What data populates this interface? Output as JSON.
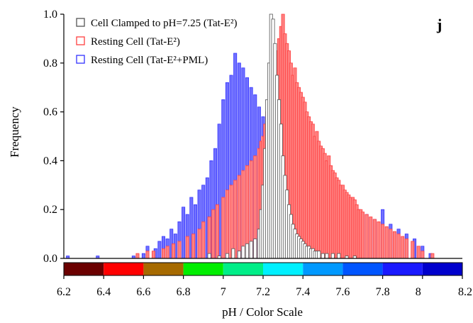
{
  "chart_data": {
    "type": "bar",
    "panel_label": "j",
    "ylabel": "Frequency",
    "xlabel": "pH / Color Scale",
    "ylim": [
      0,
      1.0
    ],
    "xlim": [
      6.2,
      8.2
    ],
    "y_ticks": [
      "0.0",
      "0.2",
      "0.4",
      "0.6",
      "0.8",
      "1.0"
    ],
    "x_ticks": [
      {
        "value": 6.2,
        "label": "6.2"
      },
      {
        "value": 6.4,
        "label": "6.4"
      },
      {
        "value": 6.6,
        "label": "6.6"
      },
      {
        "value": 6.8,
        "label": "6.8"
      },
      {
        "value": 7.0,
        "label": "7"
      },
      {
        "value": 7.2,
        "label": "7.2"
      },
      {
        "value": 7.4,
        "label": "7.4"
      },
      {
        "value": 7.6,
        "label": "7.6"
      },
      {
        "value": 7.8,
        "label": "7.8"
      },
      {
        "value": 8.0,
        "label": "8"
      },
      {
        "value": 8.2,
        "label": "8.2"
      }
    ],
    "color_scale": [
      {
        "from": 6.2,
        "to": 6.4,
        "color": "#6b0000"
      },
      {
        "from": 6.4,
        "to": 6.6,
        "color": "#ff0000"
      },
      {
        "from": 6.6,
        "to": 6.8,
        "color": "#a66a00"
      },
      {
        "from": 6.8,
        "to": 7.0,
        "color": "#00ee00"
      },
      {
        "from": 7.0,
        "to": 7.2,
        "color": "#00ee88"
      },
      {
        "from": 7.2,
        "to": 7.4,
        "color": "#00f0ff"
      },
      {
        "from": 7.4,
        "to": 7.6,
        "color": "#0099ff"
      },
      {
        "from": 7.6,
        "to": 7.8,
        "color": "#0055ff"
      },
      {
        "from": 7.8,
        "to": 8.0,
        "color": "#1a1aff"
      },
      {
        "from": 8.0,
        "to": 8.2,
        "color": "#0000cc"
      }
    ],
    "series": [
      {
        "name": "Cell Clamped to pH=7.25 (Tat-E²)",
        "color": "#555555",
        "fill": "#ffffff",
        "x": [
          6.93,
          6.98,
          7.02,
          7.05,
          7.08,
          7.1,
          7.12,
          7.14,
          7.16,
          7.18,
          7.19,
          7.2,
          7.21,
          7.22,
          7.23,
          7.24,
          7.25,
          7.26,
          7.27,
          7.28,
          7.29,
          7.3,
          7.31,
          7.32,
          7.33,
          7.34,
          7.35,
          7.36,
          7.37,
          7.38,
          7.39,
          7.4,
          7.41,
          7.42,
          7.43,
          7.44,
          7.45,
          7.46,
          7.47,
          7.48,
          7.5,
          7.52,
          7.55,
          7.58,
          7.62,
          7.66
        ],
        "values": [
          0.02,
          0.01,
          0.02,
          0.04,
          0.03,
          0.05,
          0.06,
          0.07,
          0.08,
          0.12,
          0.2,
          0.3,
          0.45,
          0.65,
          0.8,
          1.0,
          0.98,
          0.88,
          0.75,
          0.65,
          0.55,
          0.42,
          0.34,
          0.28,
          0.22,
          0.18,
          0.14,
          0.12,
          0.1,
          0.09,
          0.08,
          0.07,
          0.06,
          0.05,
          0.05,
          0.04,
          0.04,
          0.03,
          0.03,
          0.03,
          0.02,
          0.02,
          0.02,
          0.02,
          0.01,
          0.01
        ]
      },
      {
        "name": "Resting Cell (Tat-E²)",
        "color": "#ff4040",
        "fill": "#ff8080",
        "x": [
          6.57,
          6.62,
          6.65,
          6.7,
          6.72,
          6.75,
          6.78,
          6.82,
          6.85,
          6.88,
          6.9,
          6.93,
          6.95,
          6.97,
          7.0,
          7.02,
          7.04,
          7.06,
          7.08,
          7.1,
          7.12,
          7.14,
          7.16,
          7.18,
          7.19,
          7.2,
          7.21,
          7.22,
          7.23,
          7.24,
          7.25,
          7.26,
          7.27,
          7.28,
          7.29,
          7.3,
          7.31,
          7.32,
          7.33,
          7.34,
          7.35,
          7.36,
          7.37,
          7.38,
          7.39,
          7.4,
          7.41,
          7.42,
          7.43,
          7.44,
          7.45,
          7.46,
          7.47,
          7.48,
          7.49,
          7.5,
          7.51,
          7.52,
          7.53,
          7.54,
          7.55,
          7.56,
          7.57,
          7.58,
          7.59,
          7.6,
          7.61,
          7.62,
          7.63,
          7.64,
          7.65,
          7.66,
          7.67,
          7.68,
          7.69,
          7.7,
          7.72,
          7.74,
          7.76,
          7.78,
          7.8,
          7.82,
          7.84,
          7.86,
          7.88,
          7.9,
          7.92,
          7.95,
          7.98,
          8.0,
          8.05
        ],
        "values": [
          0.02,
          0.03,
          0.03,
          0.04,
          0.05,
          0.06,
          0.07,
          0.09,
          0.1,
          0.12,
          0.15,
          0.17,
          0.2,
          0.22,
          0.25,
          0.28,
          0.3,
          0.32,
          0.34,
          0.36,
          0.38,
          0.4,
          0.42,
          0.45,
          0.48,
          0.5,
          0.55,
          0.6,
          0.62,
          0.65,
          0.7,
          0.8,
          0.85,
          0.9,
          0.95,
          1.0,
          0.92,
          0.88,
          0.85,
          0.8,
          0.75,
          0.78,
          0.72,
          0.7,
          0.68,
          0.66,
          0.64,
          0.6,
          0.58,
          0.56,
          0.55,
          0.5,
          0.52,
          0.48,
          0.46,
          0.45,
          0.43,
          0.4,
          0.42,
          0.38,
          0.36,
          0.35,
          0.33,
          0.32,
          0.3,
          0.3,
          0.28,
          0.27,
          0.26,
          0.25,
          0.25,
          0.24,
          0.22,
          0.2,
          0.2,
          0.19,
          0.18,
          0.17,
          0.16,
          0.15,
          0.14,
          0.13,
          0.12,
          0.11,
          0.1,
          0.09,
          0.08,
          0.07,
          0.05,
          0.03,
          0.02
        ]
      },
      {
        "name": "Resting Cell (Tat-E²+PML)",
        "color": "#3333ff",
        "fill": "#7070ff",
        "x": [
          6.22,
          6.37,
          6.55,
          6.6,
          6.62,
          6.66,
          6.68,
          6.7,
          6.72,
          6.74,
          6.76,
          6.78,
          6.8,
          6.82,
          6.84,
          6.86,
          6.88,
          6.9,
          6.92,
          6.94,
          6.96,
          6.98,
          7.0,
          7.02,
          7.04,
          7.06,
          7.08,
          7.1,
          7.12,
          7.14,
          7.16,
          7.18,
          7.2,
          7.22,
          7.24,
          7.26,
          7.28,
          7.3,
          7.32,
          7.34,
          7.36,
          7.38,
          7.4,
          7.44,
          7.48,
          7.52,
          7.56,
          7.6,
          7.64,
          7.68,
          7.72,
          7.76,
          7.8,
          7.84,
          7.88,
          7.92,
          7.96,
          8.0,
          8.04
        ],
        "values": [
          0.01,
          0.01,
          0.01,
          0.02,
          0.05,
          0.04,
          0.07,
          0.09,
          0.08,
          0.12,
          0.1,
          0.15,
          0.21,
          0.18,
          0.25,
          0.22,
          0.28,
          0.3,
          0.33,
          0.4,
          0.45,
          0.55,
          0.65,
          0.72,
          0.75,
          0.84,
          0.8,
          0.78,
          0.74,
          0.7,
          0.67,
          0.62,
          0.58,
          0.6,
          0.55,
          0.5,
          0.52,
          0.48,
          0.45,
          0.42,
          0.4,
          0.38,
          0.36,
          0.33,
          0.3,
          0.28,
          0.26,
          0.25,
          0.22,
          0.2,
          0.18,
          0.16,
          0.2,
          0.14,
          0.12,
          0.1,
          0.08,
          0.05,
          0.02
        ]
      }
    ],
    "legend_position": "top-left",
    "grid": false
  }
}
